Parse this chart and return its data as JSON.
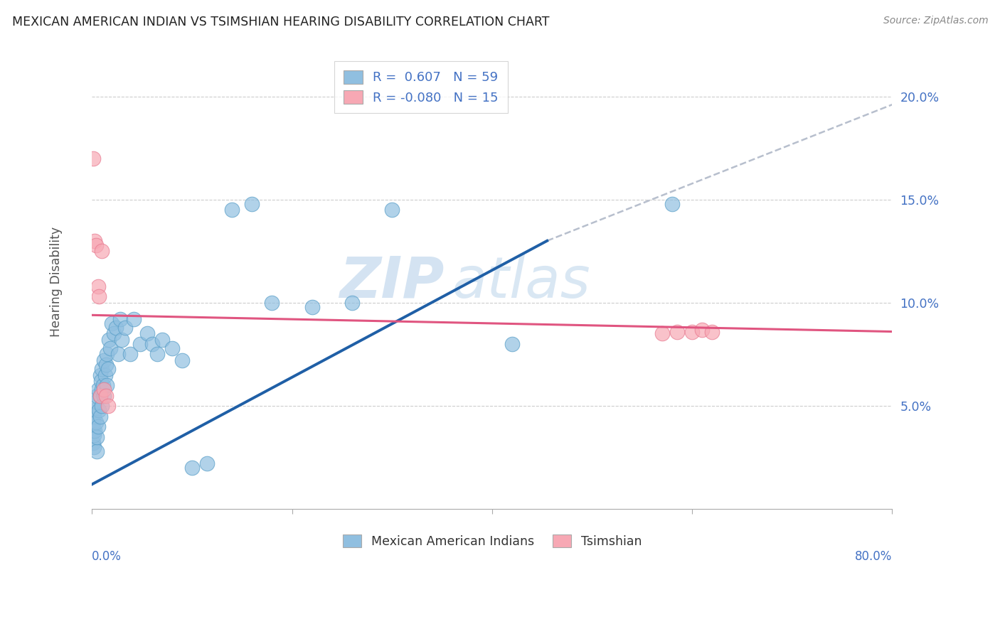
{
  "title": "MEXICAN AMERICAN INDIAN VS TSIMSHIAN HEARING DISABILITY CORRELATION CHART",
  "source": "Source: ZipAtlas.com",
  "ylabel": "Hearing Disability",
  "ytick_labels": [
    "",
    "5.0%",
    "10.0%",
    "15.0%",
    "20.0%"
  ],
  "ytick_vals": [
    0.0,
    0.05,
    0.1,
    0.15,
    0.2
  ],
  "xlim": [
    0.0,
    0.8
  ],
  "ylim": [
    0.0,
    0.22
  ],
  "R_blue": 0.607,
  "N_blue": 59,
  "R_pink": -0.08,
  "N_pink": 15,
  "blue_color": "#90bfe0",
  "blue_edge": "#5a9fc8",
  "pink_color": "#f7a8b4",
  "pink_edge": "#e87a90",
  "trend_blue": "#1f5fa6",
  "trend_pink": "#e05580",
  "trend_gray": "#b0b8c8",
  "watermark_color": "#cddff0",
  "blue_scatter_x": [
    0.001,
    0.001,
    0.001,
    0.002,
    0.002,
    0.002,
    0.003,
    0.003,
    0.004,
    0.004,
    0.005,
    0.005,
    0.005,
    0.006,
    0.006,
    0.007,
    0.008,
    0.008,
    0.008,
    0.009,
    0.01,
    0.01,
    0.01,
    0.011,
    0.012,
    0.012,
    0.013,
    0.014,
    0.015,
    0.015,
    0.016,
    0.017,
    0.018,
    0.02,
    0.022,
    0.024,
    0.026,
    0.028,
    0.03,
    0.033,
    0.038,
    0.042,
    0.048,
    0.055,
    0.06,
    0.065,
    0.07,
    0.08,
    0.09,
    0.1,
    0.115,
    0.14,
    0.16,
    0.18,
    0.22,
    0.26,
    0.3,
    0.42,
    0.58
  ],
  "blue_scatter_y": [
    0.032,
    0.038,
    0.042,
    0.03,
    0.036,
    0.045,
    0.038,
    0.048,
    0.042,
    0.052,
    0.028,
    0.035,
    0.055,
    0.04,
    0.058,
    0.048,
    0.055,
    0.065,
    0.045,
    0.062,
    0.05,
    0.058,
    0.068,
    0.06,
    0.055,
    0.072,
    0.065,
    0.07,
    0.06,
    0.075,
    0.068,
    0.082,
    0.078,
    0.09,
    0.085,
    0.088,
    0.075,
    0.092,
    0.082,
    0.088,
    0.075,
    0.092,
    0.08,
    0.085,
    0.08,
    0.075,
    0.082,
    0.078,
    0.072,
    0.02,
    0.022,
    0.145,
    0.148,
    0.1,
    0.098,
    0.1,
    0.145,
    0.08,
    0.148
  ],
  "pink_scatter_x": [
    0.001,
    0.003,
    0.004,
    0.006,
    0.007,
    0.008,
    0.01,
    0.012,
    0.014,
    0.016,
    0.57,
    0.585,
    0.6,
    0.61,
    0.62
  ],
  "pink_scatter_y": [
    0.17,
    0.13,
    0.128,
    0.108,
    0.103,
    0.055,
    0.125,
    0.058,
    0.055,
    0.05,
    0.085,
    0.086,
    0.086,
    0.087,
    0.086
  ],
  "blue_line_x0": 0.0,
  "blue_line_x1": 0.455,
  "blue_line_y0": 0.012,
  "blue_line_y1": 0.13,
  "gray_line_x0": 0.455,
  "gray_line_x1": 0.8,
  "gray_line_y0": 0.13,
  "gray_line_y1": 0.196,
  "pink_line_x0": 0.0,
  "pink_line_x1": 0.8,
  "pink_line_y0": 0.094,
  "pink_line_y1": 0.086
}
